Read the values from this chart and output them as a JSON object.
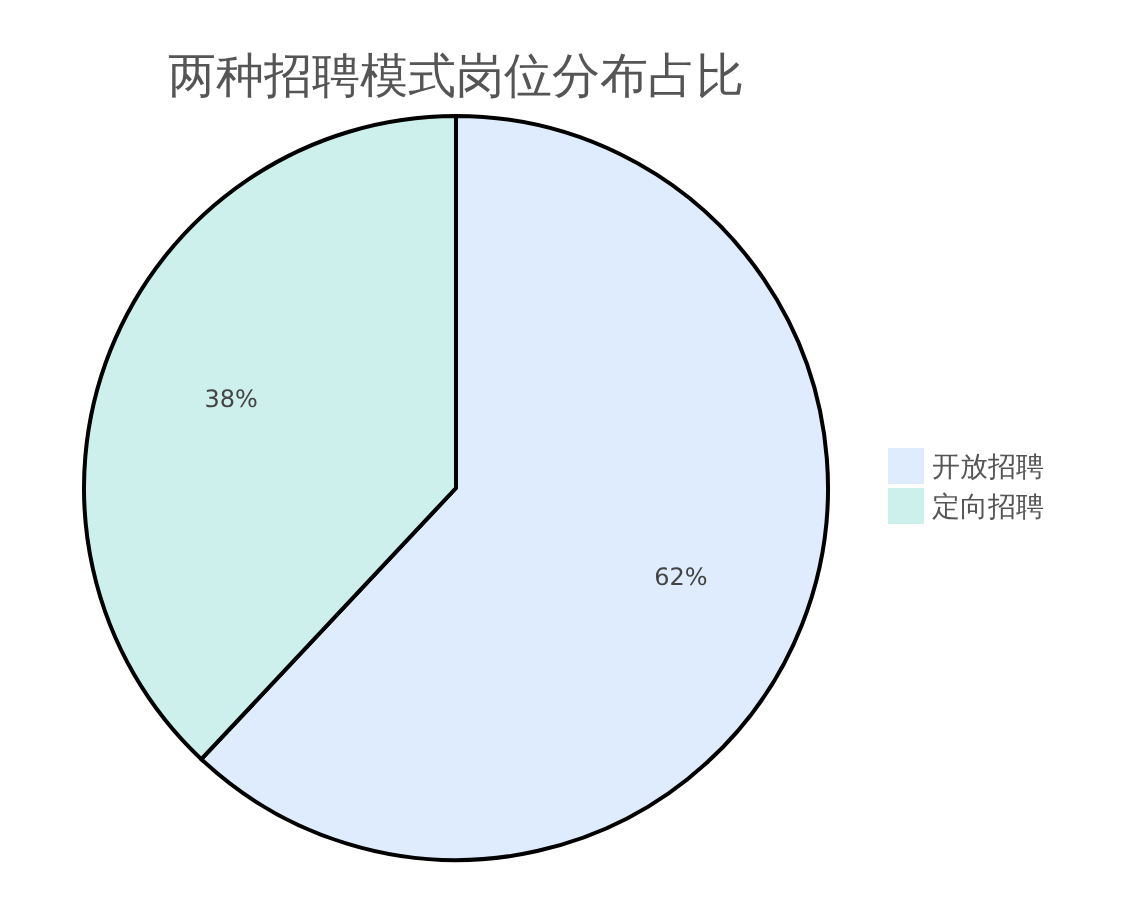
{
  "chart_data": {
    "type": "pie",
    "title": "两种招聘模式岗位分布占比",
    "categories": [
      "开放招聘",
      "定向招聘"
    ],
    "values": [
      62,
      38
    ],
    "colors": [
      "#deecfd",
      "#cdf0ec"
    ],
    "legend": "right",
    "value_labels": [
      "62%",
      "38%"
    ]
  }
}
